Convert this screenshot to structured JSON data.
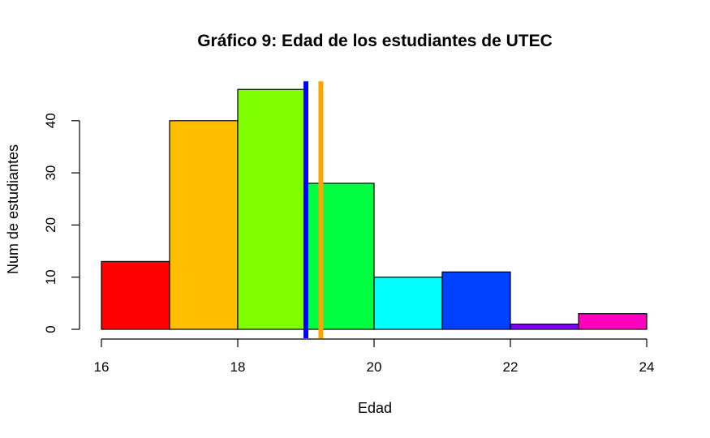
{
  "chart_data": {
    "type": "bar",
    "title": "Gráfico 9: Edad de los estudiantes de UTEC",
    "xlabel": "Edad",
    "ylabel": "Num de estudiantes",
    "bins": [
      {
        "from": 16,
        "to": 17,
        "count": 13,
        "color": "#FF0000"
      },
      {
        "from": 17,
        "to": 18,
        "count": 40,
        "color": "#FFBF00"
      },
      {
        "from": 18,
        "to": 19,
        "count": 46,
        "color": "#80FF00"
      },
      {
        "from": 19,
        "to": 20,
        "count": 28,
        "color": "#00FF40"
      },
      {
        "from": 20,
        "to": 21,
        "count": 10,
        "color": "#00FFFF"
      },
      {
        "from": 21,
        "to": 22,
        "count": 11,
        "color": "#0040FF"
      },
      {
        "from": 22,
        "to": 23,
        "count": 1,
        "color": "#8000FF"
      },
      {
        "from": 23,
        "to": 24,
        "count": 3,
        "color": "#FF00BF"
      }
    ],
    "x_ticks": [
      16,
      18,
      20,
      22,
      24
    ],
    "y_ticks": [
      0,
      10,
      20,
      30,
      40
    ],
    "xlim": [
      16,
      24
    ],
    "ylim": [
      0,
      46
    ],
    "reference_lines": [
      {
        "x": 19.0,
        "color": "#0000FF"
      },
      {
        "x": 19.22,
        "color": "#FFA500"
      }
    ],
    "grid": false,
    "legend": "none"
  }
}
